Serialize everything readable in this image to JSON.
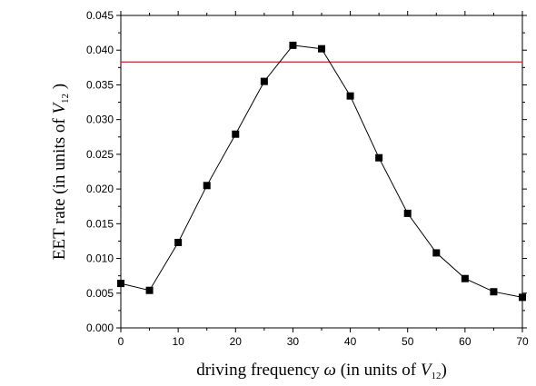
{
  "chart_data": {
    "type": "line",
    "title": "",
    "xlabel": {
      "prefix": "driving frequency ",
      "symbol": "ω",
      "middle": " (in units of ",
      "var": "V",
      "sub": "12",
      "suffix": ")"
    },
    "ylabel": {
      "prefix": "EET rate (in units of ",
      "var": "V",
      "sub": "12",
      "suffix": " )"
    },
    "xlim": [
      0,
      70
    ],
    "ylim": [
      0.0,
      0.045
    ],
    "xticks": [
      "0",
      "10",
      "20",
      "30",
      "40",
      "50",
      "60",
      "70"
    ],
    "yticks": [
      "0.000",
      "0.005",
      "0.010",
      "0.015",
      "0.020",
      "0.025",
      "0.030",
      "0.035",
      "0.040",
      "0.045"
    ],
    "grid": false,
    "legend": "none",
    "series": [
      {
        "style": "black line with filled square markers",
        "color": "#000000",
        "x": [
          0,
          5,
          10,
          15,
          20,
          25,
          30,
          35,
          40,
          45,
          50,
          55,
          60,
          65,
          70
        ],
        "y": [
          0.0064,
          0.0054,
          0.0123,
          0.0205,
          0.0279,
          0.0355,
          0.0407,
          0.0402,
          0.0334,
          0.0245,
          0.0165,
          0.0108,
          0.0071,
          0.0052,
          0.0044
        ]
      }
    ],
    "reference_line": {
      "y": 0.0383,
      "color": "#cc2222",
      "x_from": 0,
      "x_to": 70
    }
  }
}
